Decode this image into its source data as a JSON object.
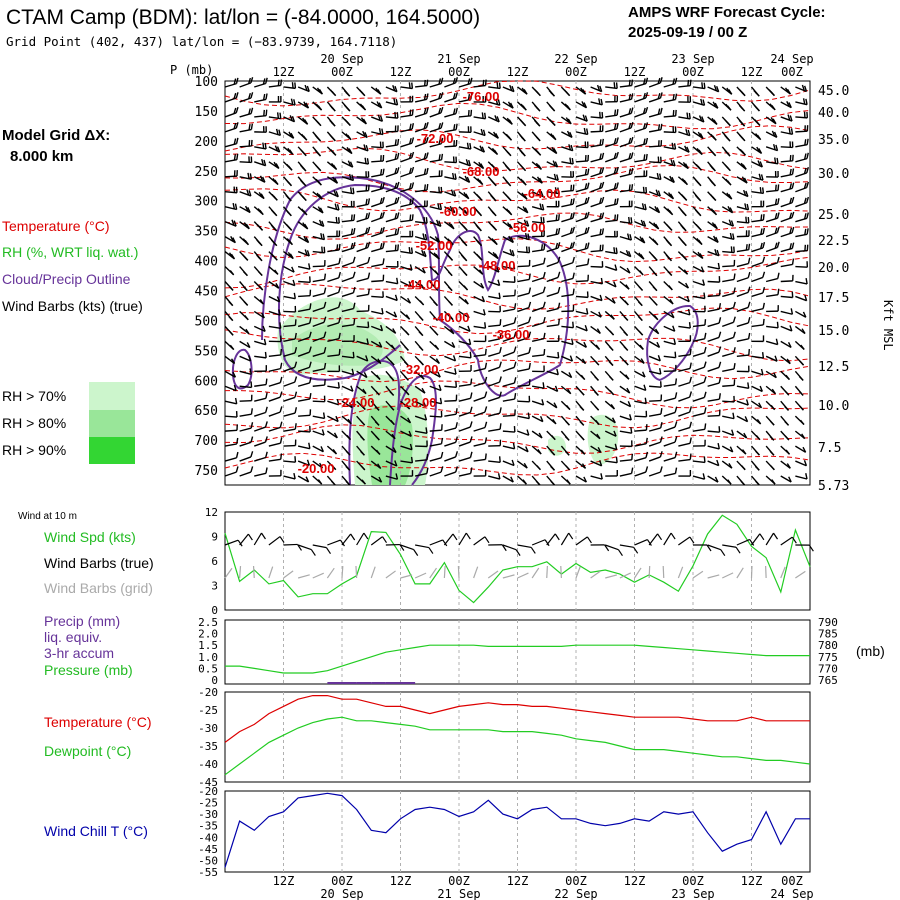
{
  "header": {
    "title": "CTAM Camp (BDM):  lat/lon = (-84.0000, 164.5000)",
    "grid_point": "Grid Point (402, 437) lat/lon = (−83.9739, 164.7118)",
    "forecast_cycle_label": "AMPS WRF Forecast Cycle:",
    "forecast_cycle_value": "2025-09-19 / 00  Z"
  },
  "model_grid": {
    "label": "Model Grid ΔX:",
    "value": "8.000 km"
  },
  "legend_profile": {
    "temperature": "Temperature (°C)",
    "rh": "RH (%, WRT liq. wat.)",
    "cloud": "Cloud/Precip Outline",
    "wind": "Wind Barbs (kts) (true)",
    "rh70": "RH > 70%",
    "rh80": "RH > 80%",
    "rh90": "RH > 90%"
  },
  "legend_wind": {
    "title": "Wind at 10 m",
    "spd": "Wind Spd (kts)",
    "barbs_true": "Wind Barbs (true)",
    "barbs_grid": "Wind Barbs (grid)"
  },
  "legend_precip": {
    "line1": "Precip (mm)",
    "line2": "liq. equiv.",
    "line3": "3-hr accum",
    "line4": "Pressure (mb)",
    "unit_right": "(mb)"
  },
  "legend_temp": {
    "temp": "Temperature (°C)",
    "dew": "Dewpoint (°C)"
  },
  "legend_chill": {
    "label": "Wind Chill T (°C)"
  },
  "colors": {
    "temperature": "#dd0000",
    "dewpoint": "#22cc22",
    "wind_chill": "#0000aa",
    "cloud": "#663399",
    "pressure": "#22cc22",
    "precip": "#663399",
    "rh70": "#ccf5cc",
    "rh80": "#99e699",
    "rh90": "#33d633",
    "grid": "#b0b0b0"
  },
  "chart_data": [
    {
      "type": "heatmap",
      "name": "cross-section",
      "ylabel_left": "P (mb)",
      "ylabel_right": "Kft MSL",
      "y_ticks": [
        "100",
        "150",
        "200",
        "250",
        "300",
        "350",
        "400",
        "450",
        "500",
        "550",
        "600",
        "650",
        "700",
        "750"
      ],
      "y_right_ticks": [
        "45.0",
        "40.0",
        "35.0",
        "30.0",
        "25.0",
        "22.5",
        "20.0",
        "17.5",
        "15.0",
        "12.5",
        "10.0",
        "7.5",
        "5.73"
      ],
      "x_ticks": [
        "12Z",
        "00Z",
        "12Z",
        "00Z",
        "12Z",
        "00Z",
        "12Z",
        "00Z",
        "12Z",
        "00Z"
      ],
      "date_labels": [
        "20 Sep",
        "21 Sep",
        "22 Sep",
        "23 Sep",
        "24 Sep"
      ],
      "temperature_labels": [
        "-76.00",
        "-72.00",
        "-68.00",
        "-64.00",
        "-60.00",
        "-56.00",
        "-52.00",
        "-48.00",
        "-44.00",
        "-40.00",
        "-36.00",
        "-32.00",
        "-24.00",
        "-28.00",
        "-20.00"
      ]
    },
    {
      "type": "line",
      "name": "wind-10m",
      "ylim": [
        0,
        12
      ],
      "y_ticks": [
        "0",
        "3",
        "6",
        "9",
        "12"
      ],
      "x": [
        0,
        3,
        6,
        9,
        12,
        15,
        18,
        21,
        24,
        27,
        30,
        33,
        36,
        39,
        42,
        45,
        48,
        51,
        54,
        57,
        60,
        63,
        66,
        69,
        72,
        75,
        78,
        81,
        84,
        87,
        90,
        93,
        96,
        99,
        102,
        105,
        108,
        111,
        114,
        117,
        120
      ],
      "series": [
        {
          "values": [
            9.4,
            3.5,
            4.9,
            3.2,
            3.6,
            1.6,
            2.0,
            2.0,
            3.2,
            4.2,
            9.6,
            9.5,
            6.8,
            3.2,
            3.2,
            5.8,
            2.4,
            0.9,
            2.8,
            4.9,
            5.3,
            5.3,
            5.9,
            4.4,
            5.7,
            4.6,
            4.9,
            4.4,
            3.4,
            4.3,
            3.4,
            2.3,
            5.4,
            9.3,
            11.6,
            10.5,
            7.8,
            6.4,
            2.2,
            9.8,
            5.3
          ]
        }
      ]
    },
    {
      "type": "line",
      "name": "precip-pressure",
      "y_ticks_left": [
        "0",
        "0.5",
        "1.0",
        "1.5",
        "2.0",
        "2.5"
      ],
      "y_ticks_right": [
        "765",
        "770",
        "775",
        "780",
        "785",
        "790"
      ],
      "x": [
        0,
        3,
        6,
        9,
        12,
        15,
        18,
        21,
        24,
        27,
        30,
        33,
        36,
        39,
        42,
        45,
        48,
        51,
        54,
        57,
        60,
        63,
        66,
        69,
        72,
        75,
        78,
        81,
        84,
        87,
        90,
        93,
        96,
        99,
        102,
        105,
        108,
        111,
        114,
        117,
        120
      ],
      "series": [
        {
          "name": "Pressure (mb)",
          "values": [
            771,
            771,
            770,
            769,
            768,
            768,
            768,
            769,
            771,
            773,
            775,
            777,
            778,
            779,
            780,
            780,
            780,
            780,
            779.5,
            779.5,
            779.5,
            779.5,
            779.5,
            779.5,
            780,
            780,
            780,
            780,
            780,
            779.5,
            779,
            778.5,
            778,
            777.5,
            777,
            776.5,
            776,
            775.5,
            775.5,
            775.5,
            775.5
          ]
        },
        {
          "name": "Precip (mm)",
          "values": [
            0,
            0,
            0,
            0,
            0,
            0,
            0,
            0.05,
            0.06,
            0.02,
            0.02,
            0.02,
            0.02,
            0,
            0,
            0,
            0,
            0,
            0,
            0,
            0,
            0,
            0,
            0,
            0,
            0,
            0,
            0,
            0,
            0,
            0,
            0,
            0,
            0,
            0,
            0,
            0,
            0,
            0,
            0,
            0
          ]
        }
      ]
    },
    {
      "type": "line",
      "name": "temp-dewpoint",
      "ylim": [
        -45,
        -20
      ],
      "y_ticks": [
        "-20",
        "-25",
        "-30",
        "-35",
        "-40",
        "-45"
      ],
      "x": [
        0,
        3,
        6,
        9,
        12,
        15,
        18,
        21,
        24,
        27,
        30,
        33,
        36,
        39,
        42,
        45,
        48,
        51,
        54,
        57,
        60,
        63,
        66,
        69,
        72,
        75,
        78,
        81,
        84,
        87,
        90,
        93,
        96,
        99,
        102,
        105,
        108,
        111,
        114,
        117,
        120
      ],
      "series": [
        {
          "name": "Temperature (°C)",
          "values": [
            -34,
            -31,
            -29,
            -26,
            -24,
            -22,
            -21,
            -21,
            -22,
            -22,
            -23,
            -24,
            -24,
            -25,
            -26,
            -25,
            -24,
            -23.5,
            -23,
            -23.5,
            -23.5,
            -24,
            -24,
            -24.5,
            -25,
            -25.5,
            -26,
            -26.5,
            -27,
            -27,
            -27,
            -27,
            -27.5,
            -28,
            -28,
            -28,
            -27,
            -28,
            -28,
            -28,
            -28
          ]
        },
        {
          "name": "Dewpoint (°C)",
          "values": [
            -43,
            -40,
            -37,
            -34,
            -32,
            -30,
            -28.5,
            -27.5,
            -27,
            -28,
            -28,
            -28.5,
            -29,
            -29.5,
            -30.5,
            -30.5,
            -30.5,
            -30.5,
            -30.5,
            -31,
            -31,
            -31,
            -31.5,
            -32,
            -33,
            -33.5,
            -34,
            -35,
            -36,
            -36,
            -36,
            -36.5,
            -37,
            -37.5,
            -38,
            -38,
            -38.5,
            -39,
            -39,
            -39.5,
            -40
          ]
        }
      ]
    },
    {
      "type": "line",
      "name": "wind-chill",
      "ylim": [
        -55,
        -20
      ],
      "y_ticks": [
        "-20",
        "-25",
        "-30",
        "-35",
        "-40",
        "-45",
        "-50",
        "-55"
      ],
      "x": [
        0,
        3,
        6,
        9,
        12,
        15,
        18,
        21,
        24,
        27,
        30,
        33,
        36,
        39,
        42,
        45,
        48,
        51,
        54,
        57,
        60,
        63,
        66,
        69,
        72,
        75,
        78,
        81,
        84,
        87,
        90,
        93,
        96,
        99,
        102,
        105,
        108,
        111,
        114,
        117,
        120
      ],
      "x_ticks": [
        "12Z",
        "00Z",
        "12Z",
        "00Z",
        "12Z",
        "00Z",
        "12Z",
        "00Z",
        "12Z",
        "00Z"
      ],
      "date_labels": [
        "20 Sep",
        "21 Sep",
        "22 Sep",
        "23 Sep",
        "24 Sep"
      ],
      "series": [
        {
          "name": "Wind Chill T (°C)",
          "values": [
            -53,
            -33,
            -37,
            -31,
            -29,
            -23,
            -22,
            -21,
            -22,
            -28,
            -37,
            -38,
            -32,
            -28,
            -27,
            -28,
            -31,
            -29,
            -24,
            -30,
            -32,
            -28,
            -27,
            -32,
            -32,
            -34,
            -35,
            -34,
            -32,
            -33,
            -29,
            -30,
            -29,
            -38,
            -46,
            -43,
            -41,
            -29,
            -43,
            -32,
            -32
          ]
        }
      ]
    }
  ]
}
